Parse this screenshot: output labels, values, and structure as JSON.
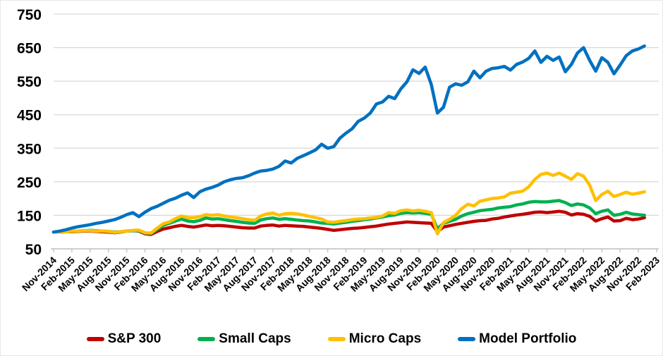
{
  "chart_data": {
    "type": "line",
    "title": "",
    "xlabel": "",
    "ylabel": "",
    "grid": "horizontal",
    "legend_position": "bottom",
    "ylim": [
      50,
      750
    ],
    "y_ticks": [
      750,
      650,
      550,
      450,
      350,
      250,
      150,
      50
    ],
    "x_tick_labels": [
      "Nov-2014",
      "Feb-2015",
      "May-2015",
      "Aug-2015",
      "Nov-2015",
      "Feb-2016",
      "May-2016",
      "Aug-2016",
      "Nov-2016",
      "Feb-2017",
      "May-2017",
      "Aug-2017",
      "Nov-2017",
      "Feb-2018",
      "May-2018",
      "Aug-2018",
      "Nov-2018",
      "Feb-2019",
      "May-2019",
      "Aug-2019",
      "Nov-2019",
      "Feb-2020",
      "May-2020",
      "Aug-2020",
      "Nov-2020",
      "Feb-2021",
      "May-2021",
      "Aug-2021",
      "Nov-2021",
      "Feb-2022",
      "May-2022",
      "Aug-2022",
      "Nov-2022",
      "Feb-2023"
    ],
    "x_frequency": "monthly",
    "x_start": "Nov-2014",
    "x_end": "Dec-2022",
    "series": [
      {
        "name": "S&P 300",
        "color": "#C00000",
        "values": [
          100,
          100,
          101,
          101,
          102,
          103,
          103,
          102,
          101,
          100,
          98,
          100,
          103,
          104,
          103,
          95,
          93,
          102,
          109,
          113,
          117,
          120,
          117,
          115,
          118,
          121,
          119,
          120,
          119,
          117,
          115,
          113,
          112,
          112,
          118,
          120,
          121,
          118,
          120,
          119,
          118,
          117,
          115,
          113,
          111,
          108,
          105,
          107,
          109,
          111,
          112,
          114,
          116,
          118,
          121,
          124,
          126,
          128,
          130,
          129,
          128,
          127,
          126,
          101,
          115,
          119,
          123,
          126,
          129,
          132,
          134,
          135,
          139,
          141,
          145,
          148,
          151,
          153,
          156,
          159,
          160,
          158,
          160,
          162,
          159,
          151,
          155,
          153,
          147,
          133,
          140,
          145,
          133,
          134,
          141,
          137,
          139,
          143
        ]
      },
      {
        "name": "Small Caps",
        "color": "#00B050",
        "values": [
          100,
          100,
          101,
          102,
          103,
          104,
          105,
          104,
          103,
          102,
          100,
          101,
          103,
          104,
          104,
          97,
          96,
          108,
          120,
          126,
          133,
          139,
          133,
          131,
          135,
          142,
          139,
          140,
          137,
          134,
          132,
          129,
          127,
          126,
          136,
          140,
          142,
          138,
          140,
          138,
          136,
          134,
          133,
          130,
          127,
          126,
          124,
          127,
          129,
          132,
          134,
          137,
          139,
          142,
          145,
          149,
          151,
          156,
          158,
          157,
          158,
          156,
          153,
          110,
          126,
          132,
          138,
          148,
          155,
          159,
          164,
          166,
          168,
          172,
          174,
          176,
          181,
          184,
          189,
          191,
          190,
          190,
          192,
          194,
          188,
          179,
          184,
          181,
          172,
          155,
          162,
          166,
          150,
          153,
          159,
          154,
          152,
          150
        ]
      },
      {
        "name": "Micro Caps",
        "color": "#FFC000",
        "values": [
          100,
          100,
          101,
          102,
          103,
          104,
          104,
          103,
          103,
          102,
          99,
          101,
          103,
          105,
          106,
          98,
          97,
          112,
          125,
          130,
          140,
          148,
          143,
          143,
          146,
          152,
          150,
          152,
          148,
          145,
          143,
          140,
          137,
          135,
          148,
          154,
          157,
          150,
          155,
          156,
          154,
          151,
          147,
          143,
          139,
          130,
          129,
          132,
          134,
          137,
          139,
          140,
          142,
          144,
          148,
          158,
          156,
          164,
          166,
          163,
          165,
          162,
          158,
          95,
          128,
          138,
          150,
          170,
          183,
          178,
          192,
          196,
          200,
          202,
          205,
          216,
          219,
          222,
          235,
          257,
          272,
          276,
          269,
          276,
          267,
          257,
          274,
          267,
          240,
          194,
          212,
          222,
          206,
          212,
          219,
          213,
          216,
          220
        ]
      },
      {
        "name": "Model Portfolio",
        "color": "#0070C0",
        "values": [
          100,
          103,
          107,
          112,
          116,
          119,
          122,
          126,
          129,
          133,
          137,
          144,
          152,
          158,
          146,
          159,
          170,
          177,
          186,
          195,
          201,
          210,
          217,
          203,
          220,
          228,
          233,
          240,
          250,
          256,
          260,
          262,
          268,
          276,
          282,
          284,
          288,
          296,
          312,
          306,
          320,
          328,
          336,
          345,
          362,
          350,
          355,
          380,
          395,
          408,
          430,
          440,
          455,
          482,
          488,
          505,
          498,
          527,
          548,
          584,
          573,
          592,
          540,
          455,
          472,
          532,
          542,
          538,
          548,
          580,
          560,
          580,
          588,
          590,
          594,
          583,
          600,
          607,
          618,
          640,
          606,
          624,
          612,
          622,
          578,
          600,
          634,
          650,
          612,
          580,
          620,
          606,
          572,
          598,
          626,
          640,
          646,
          655
        ]
      }
    ]
  },
  "legend": {
    "items": [
      {
        "label": "S&P 300",
        "color": "#C00000"
      },
      {
        "label": "Small Caps",
        "color": "#00B050"
      },
      {
        "label": "Micro Caps",
        "color": "#FFC000"
      },
      {
        "label": "Model Portfolio",
        "color": "#0070C0"
      }
    ]
  },
  "style": {
    "gridline_color": "#D9D9D9",
    "axis_color": "#BFBFBF",
    "text_color": "#000000",
    "background": "#FFFFFF"
  }
}
